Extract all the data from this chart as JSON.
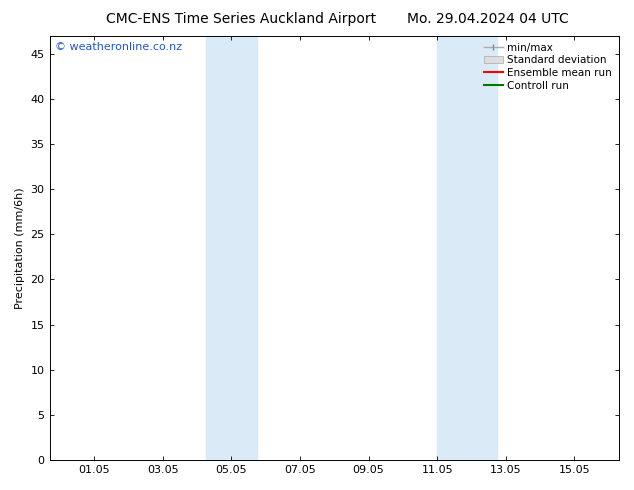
{
  "title_left": "CMC-ENS Time Series Auckland Airport",
  "title_right": "Mo. 29.04.2024 04 UTC",
  "ylabel": "Precipitation (mm/6h)",
  "ylim": [
    0,
    47
  ],
  "yticks": [
    0,
    5,
    10,
    15,
    20,
    25,
    30,
    35,
    40,
    45
  ],
  "xtick_labels": [
    "01.05",
    "03.05",
    "05.05",
    "07.05",
    "09.05",
    "11.05",
    "13.05",
    "15.05"
  ],
  "xtick_positions": [
    1,
    3,
    5,
    7,
    9,
    11,
    13,
    15
  ],
  "xlim": [
    -0.3,
    16.3
  ],
  "shaded_bands": [
    {
      "x_start": 4.25,
      "x_end": 5.75
    },
    {
      "x_start": 11.0,
      "x_end": 12.75
    }
  ],
  "shaded_color": "#daeaf7",
  "background_color": "#ffffff",
  "watermark_text": "© weatheronline.co.nz",
  "watermark_color": "#2255cc",
  "legend_labels": [
    "min/max",
    "Standard deviation",
    "Ensemble mean run",
    "Controll run"
  ],
  "legend_colors": [
    "#aaaaaa",
    "#cccccc",
    "#ff0000",
    "#007700"
  ],
  "tick_direction": "in",
  "font_size_title": 10,
  "font_size_axis": 8,
  "font_size_legend": 7.5,
  "font_size_watermark": 8,
  "font_size_ylabel": 8
}
